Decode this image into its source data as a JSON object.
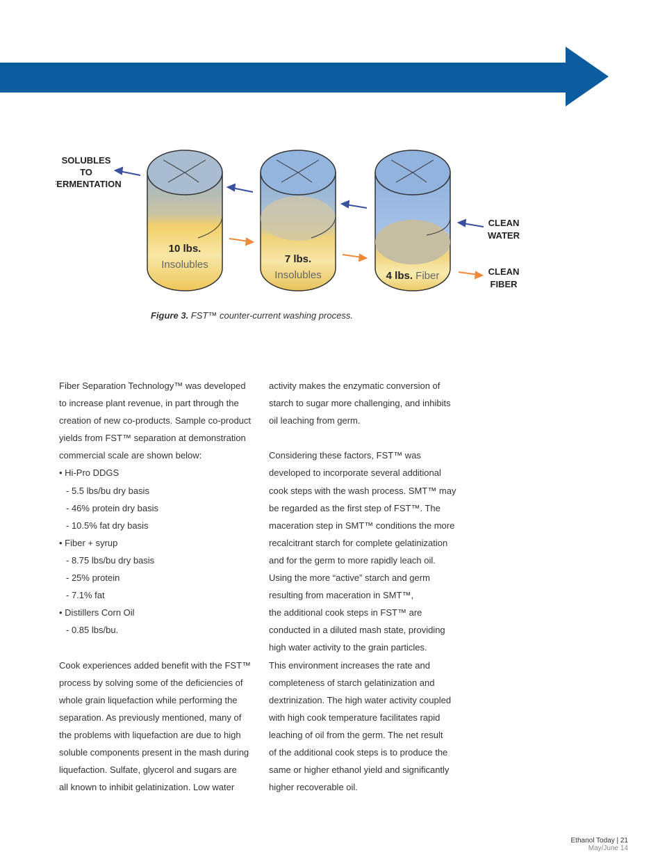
{
  "colors": {
    "banner": "#0b5c9e",
    "water_arrow": "#3a4f9e",
    "fiber_arrow": "#ee8a3c"
  },
  "figure": {
    "labels": {
      "solubles": [
        "SOLUBLES",
        "TO",
        "FERMENTATION"
      ],
      "clean_water": [
        "CLEAN",
        "WATER"
      ],
      "clean_fiber": [
        "CLEAN",
        "FIBER"
      ]
    },
    "tanks": [
      {
        "amount": "10 lbs.",
        "material": "Insolubles"
      },
      {
        "amount": "7 lbs.",
        "material": "Insolubles"
      },
      {
        "amount": "4 lbs.",
        "material": "Fiber"
      }
    ],
    "caption_label": "Figure 3.",
    "caption_text": " FST™ counter-current washing process."
  },
  "columns": {
    "left": [
      {
        "t": "Fiber Separation Technology™ was developed"
      },
      {
        "t": "to increase plant revenue, in part through the"
      },
      {
        "t": "creation of new co-products. Sample co-product"
      },
      {
        "t": "yields from FST™ separation at demonstration"
      },
      {
        "t": "commercial scale are shown below:"
      },
      {
        "t": "• Hi-Pro DDGS"
      },
      {
        "t": "-  5.5 lbs/bu dry basis",
        "sub": true
      },
      {
        "t": "-  46% protein dry basis",
        "sub": true
      },
      {
        "t": "-  10.5% fat dry basis",
        "sub": true
      },
      {
        "t": "• Fiber + syrup"
      },
      {
        "t": "-  8.75 lbs/bu dry basis",
        "sub": true
      },
      {
        "t": "-  25% protein",
        "sub": true
      },
      {
        "t": "-  7.1% fat",
        "sub": true
      },
      {
        "t": "• Distillers Corn Oil"
      },
      {
        "t": "-  0.85 lbs/bu.",
        "sub": true
      },
      {
        "t": ""
      },
      {
        "t": "Cook experiences added benefit with the FST™"
      },
      {
        "t": "process by solving some of the deficiencies of"
      },
      {
        "t": "whole grain liquefaction while performing the"
      },
      {
        "t": "separation. As previously mentioned, many of"
      },
      {
        "t": "the problems with liquefaction are due to high"
      },
      {
        "t": "soluble components present in the mash during"
      },
      {
        "t": "liquefaction. Sulfate, glycerol and sugars are"
      },
      {
        "t": "all known to inhibit gelatinization. Low water"
      }
    ],
    "right": [
      {
        "t": "activity makes the enzymatic conversion of"
      },
      {
        "t": "starch to sugar more challenging, and inhibits"
      },
      {
        "t": "oil leaching from germ."
      },
      {
        "t": ""
      },
      {
        "t": "Considering these factors, FST™ was"
      },
      {
        "t": "developed to incorporate several additional"
      },
      {
        "t": "cook steps with the wash process. SMT™ may"
      },
      {
        "t": "be regarded as the first step of FST™. The"
      },
      {
        "t": "maceration step in SMT™ conditions the more"
      },
      {
        "t": "recalcitrant starch for complete gelatinization"
      },
      {
        "t": "and for the germ to more rapidly leach oil."
      },
      {
        "t": "Using the more “active” starch and germ"
      },
      {
        "t": "resulting from maceration in SMT™,"
      },
      {
        "t": "the additional cook steps in FST™ are"
      },
      {
        "t": "conducted in a diluted mash state, providing"
      },
      {
        "t": "high water activity to the grain particles."
      },
      {
        "t": "This environment increases the rate and"
      },
      {
        "t": "completeness of starch gelatinization and"
      },
      {
        "t": "dextrinization. The high water activity coupled"
      },
      {
        "t": "with high cook temperature facilitates rapid"
      },
      {
        "t": "leaching of oil from the germ. The net result"
      },
      {
        "t": "of the additional cook steps is to produce the"
      },
      {
        "t": "same or higher ethanol yield and significantly"
      },
      {
        "t": "higher recoverable oil."
      }
    ]
  },
  "footer": {
    "magazine": "Ethanol Today  |  21",
    "date": "May/June 14"
  }
}
